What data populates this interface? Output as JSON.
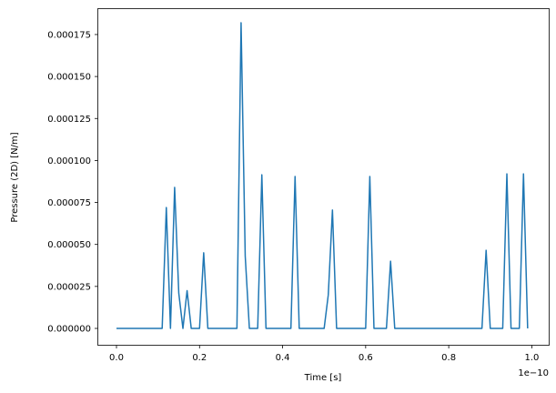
{
  "chart_data": {
    "type": "line",
    "title": "",
    "xlabel": "Time [s]",
    "ylabel": "Pressure (2D) [N/m]",
    "x_offset_text": "1e−10",
    "x_scale": 1e-10,
    "xlim": [
      -0.05,
      1.04
    ],
    "ylim": [
      -9.1e-06,
      0.000191
    ],
    "grid": false,
    "legend": null,
    "line_color": "#1f77b4",
    "x_ticks": [
      0.0,
      0.2,
      0.4,
      0.6,
      0.8,
      1.0
    ],
    "x_tick_labels": [
      "0.0",
      "0.2",
      "0.4",
      "0.6",
      "0.8",
      "1.0"
    ],
    "y_ticks": [
      0.0,
      2.5e-05,
      5e-05,
      7.5e-05,
      0.0001,
      0.000125,
      0.00015,
      0.000175
    ],
    "y_tick_labels": [
      "0.000000",
      "0.000025",
      "0.000050",
      "0.000075",
      "0.000100",
      "0.000125",
      "0.000150",
      "0.000175"
    ],
    "x_step": 0.01,
    "x_start": 0.0,
    "x_end": 0.99,
    "nonzero_points": [
      {
        "x": 0.12,
        "y": 7.2e-05
      },
      {
        "x": 0.14,
        "y": 8.4e-05
      },
      {
        "x": 0.15,
        "y": 2.1e-05
      },
      {
        "x": 0.17,
        "y": 2.25e-05
      },
      {
        "x": 0.21,
        "y": 4.5e-05
      },
      {
        "x": 0.3,
        "y": 0.000182
      },
      {
        "x": 0.31,
        "y": 4.3e-05
      },
      {
        "x": 0.35,
        "y": 9.15e-05
      },
      {
        "x": 0.43,
        "y": 9.05e-05
      },
      {
        "x": 0.51,
        "y": 2e-05
      },
      {
        "x": 0.52,
        "y": 7.05e-05
      },
      {
        "x": 0.61,
        "y": 9.05e-05
      },
      {
        "x": 0.66,
        "y": 4e-05
      },
      {
        "x": 0.89,
        "y": 4.65e-05
      },
      {
        "x": 0.94,
        "y": 9.2e-05
      },
      {
        "x": 0.98,
        "y": 9.2e-05
      }
    ],
    "series": [
      {
        "name": "Pressure (2D)",
        "note": "all other samples at x_step spacing from 0.00 to 0.99 are 0"
      }
    ]
  }
}
